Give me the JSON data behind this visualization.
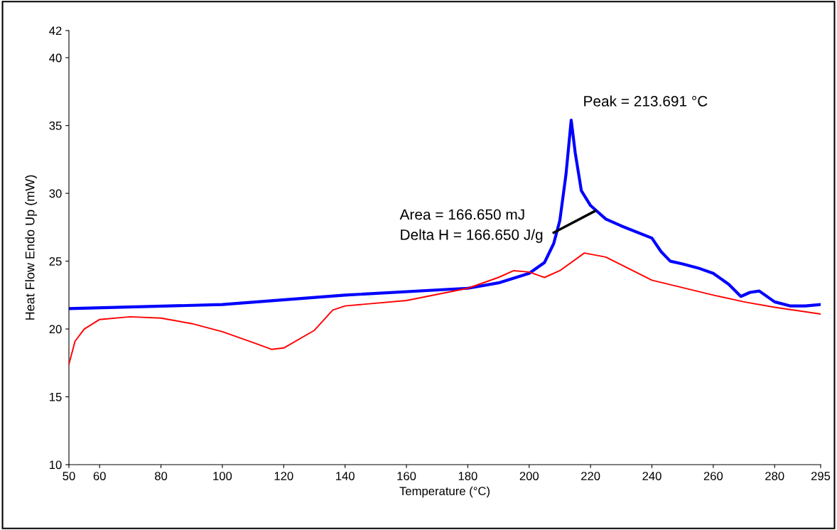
{
  "chart_data": {
    "type": "line",
    "xlabel": "Temperature (°C)",
    "ylabel": "Heat Flow Endo Up (mW)",
    "xlim": [
      50,
      295
    ],
    "xticks": [
      50,
      60,
      80,
      100,
      120,
      140,
      160,
      180,
      200,
      220,
      240,
      260,
      280,
      295
    ],
    "ylim": [
      10,
      42
    ],
    "yticks": [
      10,
      15,
      20,
      25,
      30,
      35,
      40,
      42
    ],
    "grid": false,
    "legend": false,
    "series": [
      {
        "color": "#ff0000",
        "x": [
          50,
          52,
          55,
          60,
          70,
          80,
          90,
          100,
          110,
          116,
          120,
          130,
          136,
          140,
          160,
          180,
          190,
          195,
          200,
          205,
          210,
          218,
          225,
          240,
          260,
          270,
          280,
          295
        ],
        "values": [
          17.4,
          19.1,
          20.0,
          20.7,
          20.9,
          20.8,
          20.4,
          19.8,
          19.0,
          18.5,
          18.6,
          19.9,
          21.4,
          21.7,
          22.1,
          23.0,
          23.8,
          24.3,
          24.2,
          23.8,
          24.3,
          25.6,
          25.3,
          23.6,
          22.5,
          22.0,
          21.6,
          21.1
        ]
      },
      {
        "color": "#0000ff",
        "x": [
          50,
          100,
          140,
          180,
          190,
          200,
          205,
          208,
          210,
          212,
          213.7,
          215,
          217,
          220,
          221.5,
          225,
          230,
          240,
          243,
          246,
          250,
          255,
          260,
          265,
          269,
          272,
          275,
          280,
          285,
          290,
          295
        ],
        "values": [
          21.5,
          21.8,
          22.5,
          23.0,
          23.4,
          24.1,
          24.9,
          26.3,
          28.0,
          31.4,
          35.4,
          33.0,
          30.2,
          29.1,
          28.8,
          28.1,
          27.6,
          26.7,
          25.7,
          25.0,
          24.8,
          24.5,
          24.1,
          23.3,
          22.4,
          22.7,
          22.8,
          22.0,
          21.7,
          21.7,
          21.8
        ]
      },
      {
        "color": "#000000",
        "x": [
          208,
          221.5
        ],
        "values": [
          27.1,
          28.7
        ]
      }
    ],
    "annotations": [
      {
        "text": "Peak = 213.691 °C",
        "x": 213.691,
        "y": 35.4
      },
      "Area = 166.650 mJ\nDelta H = 166.650 J/g"
    ]
  }
}
